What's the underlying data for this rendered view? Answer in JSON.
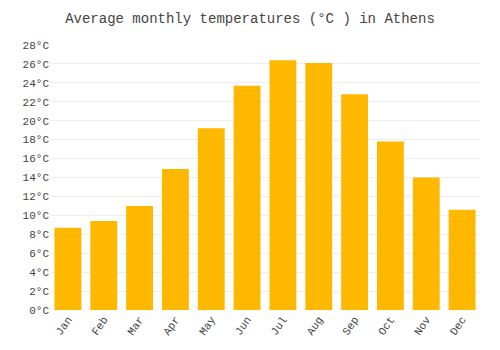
{
  "chart_data": {
    "type": "bar",
    "title": "Average monthly temperatures (°C ) in Athens",
    "categories": [
      "Jan",
      "Feb",
      "Mar",
      "Apr",
      "May",
      "Jun",
      "Jul",
      "Aug",
      "Sep",
      "Oct",
      "Nov",
      "Dec"
    ],
    "values": [
      8.7,
      9.4,
      11.0,
      14.9,
      19.2,
      23.7,
      26.4,
      26.1,
      22.8,
      17.8,
      14.0,
      10.6
    ],
    "color": "#FFB800",
    "ylim": [
      0,
      28
    ],
    "yticks": [
      {
        "value": 0,
        "label": "0°C"
      },
      {
        "value": 2,
        "label": "2°C"
      },
      {
        "value": 4,
        "label": "4°C"
      },
      {
        "value": 6,
        "label": "6°C"
      },
      {
        "value": 8,
        "label": "8°C"
      },
      {
        "value": 10,
        "label": "10°C"
      },
      {
        "value": 12,
        "label": "12°C"
      },
      {
        "value": 14,
        "label": "14°C"
      },
      {
        "value": 16,
        "label": "16°C"
      },
      {
        "value": 18,
        "label": "18°C"
      },
      {
        "value": 20,
        "label": "20°C"
      },
      {
        "value": 22,
        "label": "22°C"
      },
      {
        "value": 24,
        "label": "24°C"
      },
      {
        "value": 26,
        "label": "26°C"
      },
      {
        "value": 28,
        "label": "28°C"
      }
    ],
    "grid": true
  }
}
